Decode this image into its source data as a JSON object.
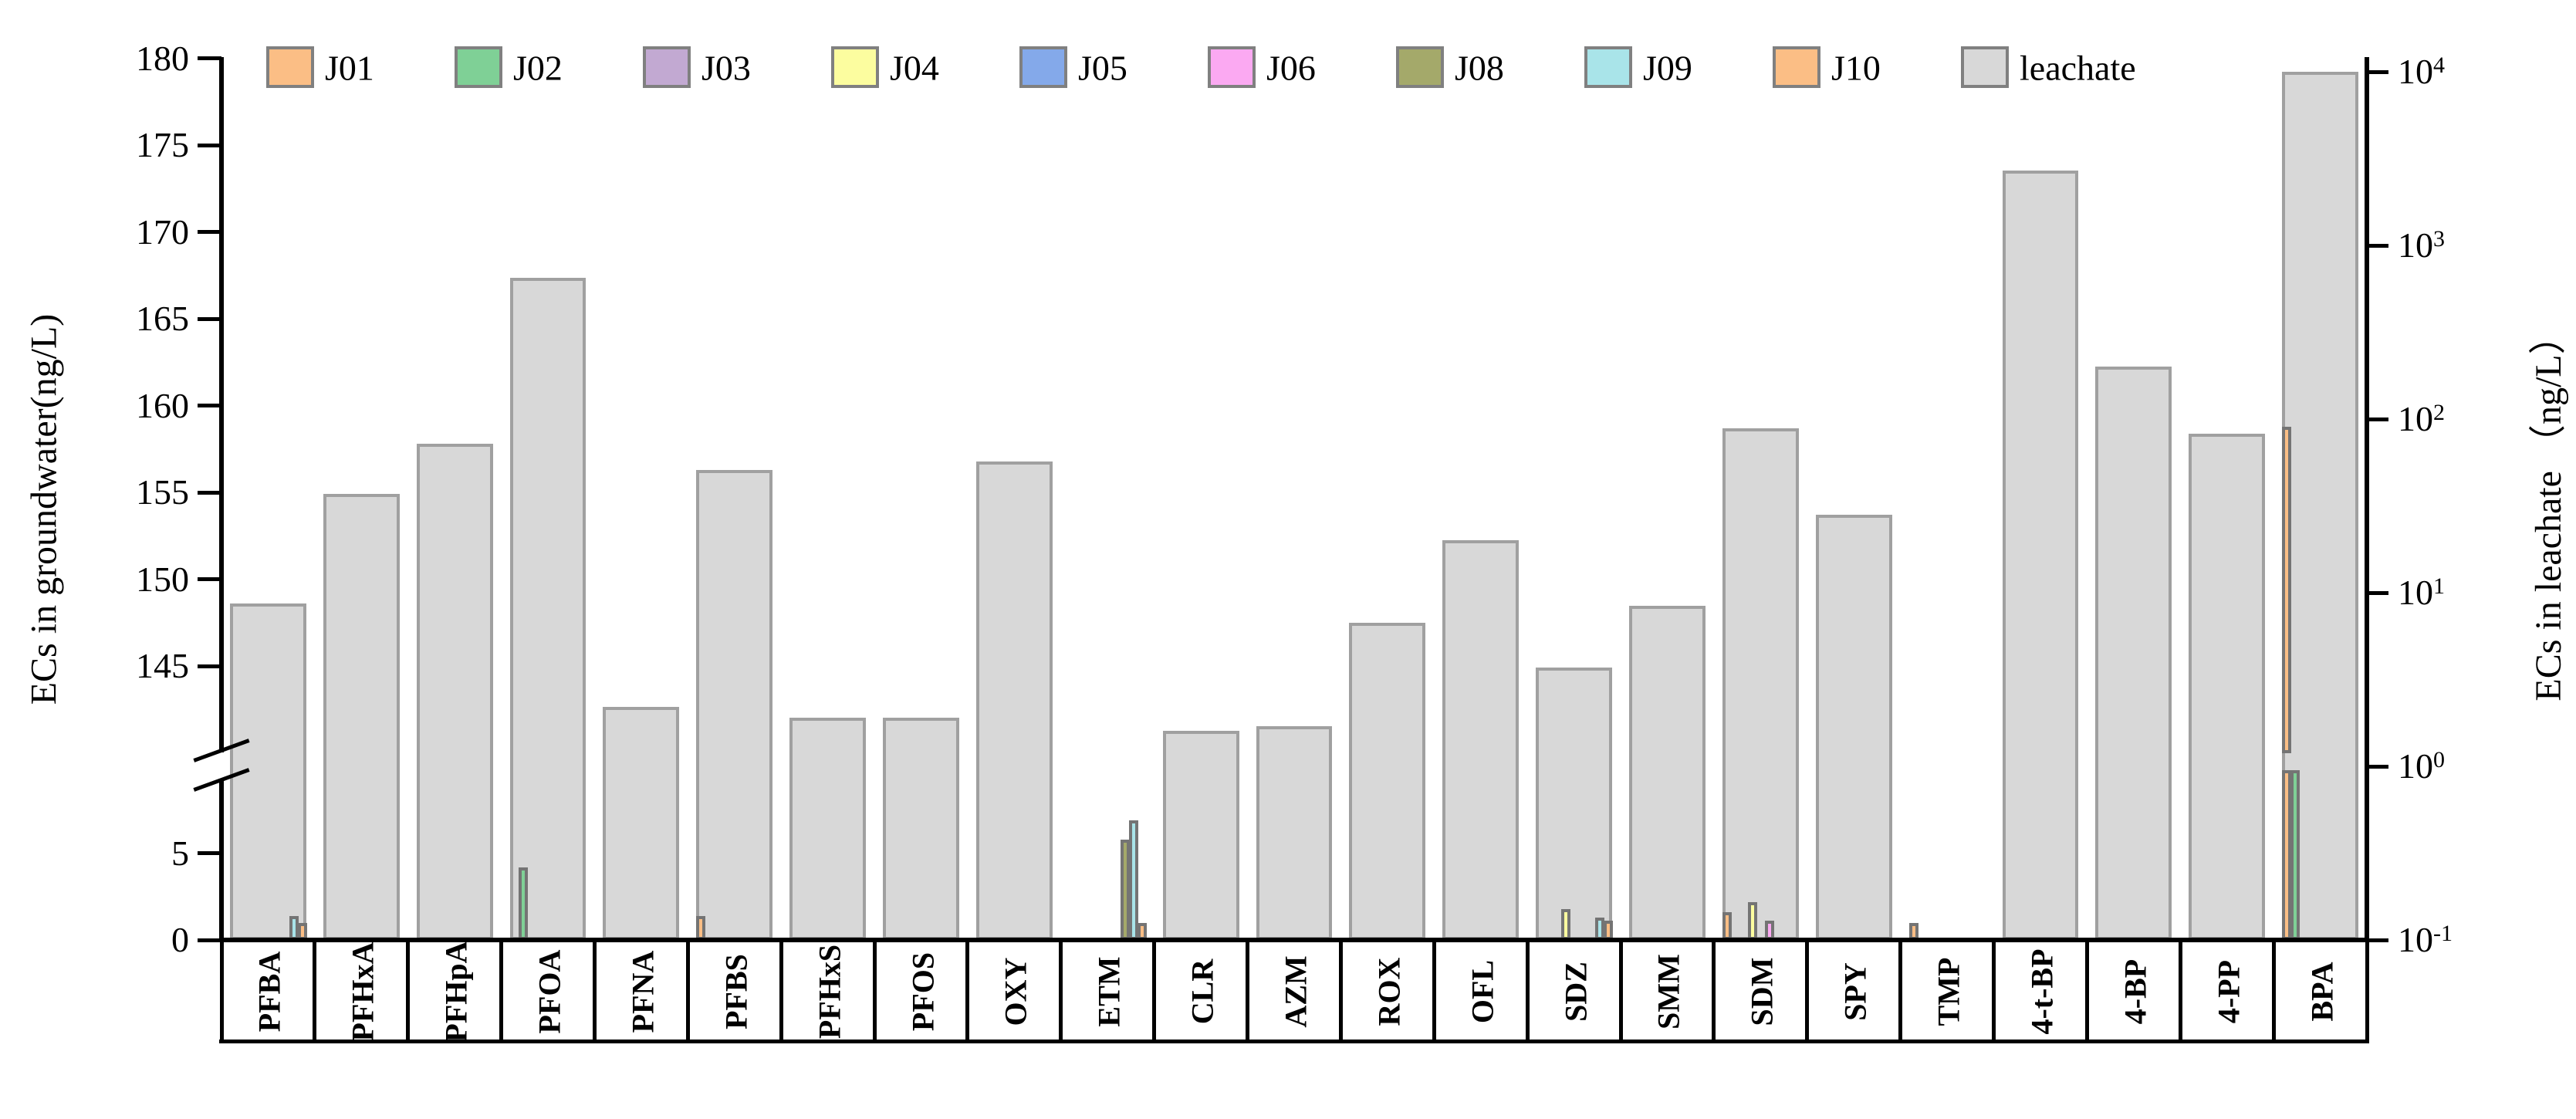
{
  "chart_data": {
    "type": "bar",
    "title": "",
    "left_axis": {
      "label": "ECs in groundwater(ng/L)",
      "ticks_low": [
        0,
        5
      ],
      "ticks_high": [
        145,
        150,
        155,
        160,
        165,
        170,
        175,
        180
      ],
      "has_break": true,
      "ylim_low": [
        0,
        9.8
      ],
      "ylim_high": [
        140.5,
        180
      ]
    },
    "right_axis": {
      "label": "ECs in leachate （ng/L）",
      "scale": "log",
      "tick_base": "10",
      "tick_exponents": [
        -1,
        0,
        1,
        2,
        3,
        4
      ]
    },
    "categories": [
      "PFBA",
      "PFHxA",
      "PFHpA",
      "PFOA",
      "PFNA",
      "PFBS",
      "PFHxS",
      "PFOS",
      "OXY",
      "ETM",
      "CLR",
      "AZM",
      "ROX",
      "OFL",
      "SDZ",
      "SMM",
      "SDM",
      "SPY",
      "TMP",
      "4-t-BP",
      "4-BP",
      "4-PP",
      "BPA"
    ],
    "wells": [
      "J01",
      "J02",
      "J03",
      "J04",
      "J05",
      "J06",
      "J08",
      "J09",
      "J10"
    ],
    "well_colors": {
      "J01": "#FBBE85",
      "J02": "#7FD096",
      "J03": "#C2A9D2",
      "J04": "#FCFD9F",
      "J05": "#84A9EA",
      "J06": "#FBA9F2",
      "J08": "#A4A96A",
      "J09": "#A9E4E9",
      "J10": "#FBBE85"
    },
    "leachate_series": {
      "name": "leachate",
      "color": "#D8D8D8",
      "border_color": "#A0A0A0",
      "values_ng_L": [
        8.7,
        37,
        72,
        650,
        2.2,
        51,
        1.9,
        1.9,
        57,
        null,
        1.6,
        1.7,
        6.7,
        20,
        3.7,
        8.4,
        88,
        28,
        null,
        2700,
        200,
        82,
        10000
      ]
    },
    "groundwater_bars": [
      {
        "category": "PFBA",
        "well": "J09",
        "value": 1.4
      },
      {
        "category": "PFBA",
        "well": "J10",
        "value": 1.0
      },
      {
        "category": "PFOA",
        "well": "J02",
        "value": 4.2
      },
      {
        "category": "PFBS",
        "well": "J01",
        "value": 1.4
      },
      {
        "category": "ETM",
        "well": "J08",
        "value": 5.8
      },
      {
        "category": "ETM",
        "well": "J09",
        "value": 6.9
      },
      {
        "category": "ETM",
        "well": "J10",
        "value": 1.0
      },
      {
        "category": "SDZ",
        "well": "J04",
        "value": 1.8
      },
      {
        "category": "SDZ",
        "well": "J09",
        "value": 1.3
      },
      {
        "category": "SDZ",
        "well": "J10",
        "value": 1.1
      },
      {
        "category": "SDM",
        "well": "J01",
        "value": 1.6
      },
      {
        "category": "SDM",
        "well": "J04",
        "value": 2.2
      },
      {
        "category": "SDM",
        "well": "J06",
        "value": 1.1
      },
      {
        "category": "TMP",
        "well": "J01",
        "value": 1.0
      },
      {
        "category": "BPA",
        "well": "J01",
        "value": 158.8
      },
      {
        "category": "BPA",
        "well": "J02",
        "value": 9.8
      }
    ],
    "legend_labels": [
      "J01",
      "J02",
      "J03",
      "J04",
      "J05",
      "J06",
      "J08",
      "J09",
      "J10",
      "leachate"
    ],
    "style": {
      "well_border": "#747474",
      "axis_color": "#000000",
      "legend_swatch_border": "#808080",
      "background": "#ffffff"
    }
  }
}
